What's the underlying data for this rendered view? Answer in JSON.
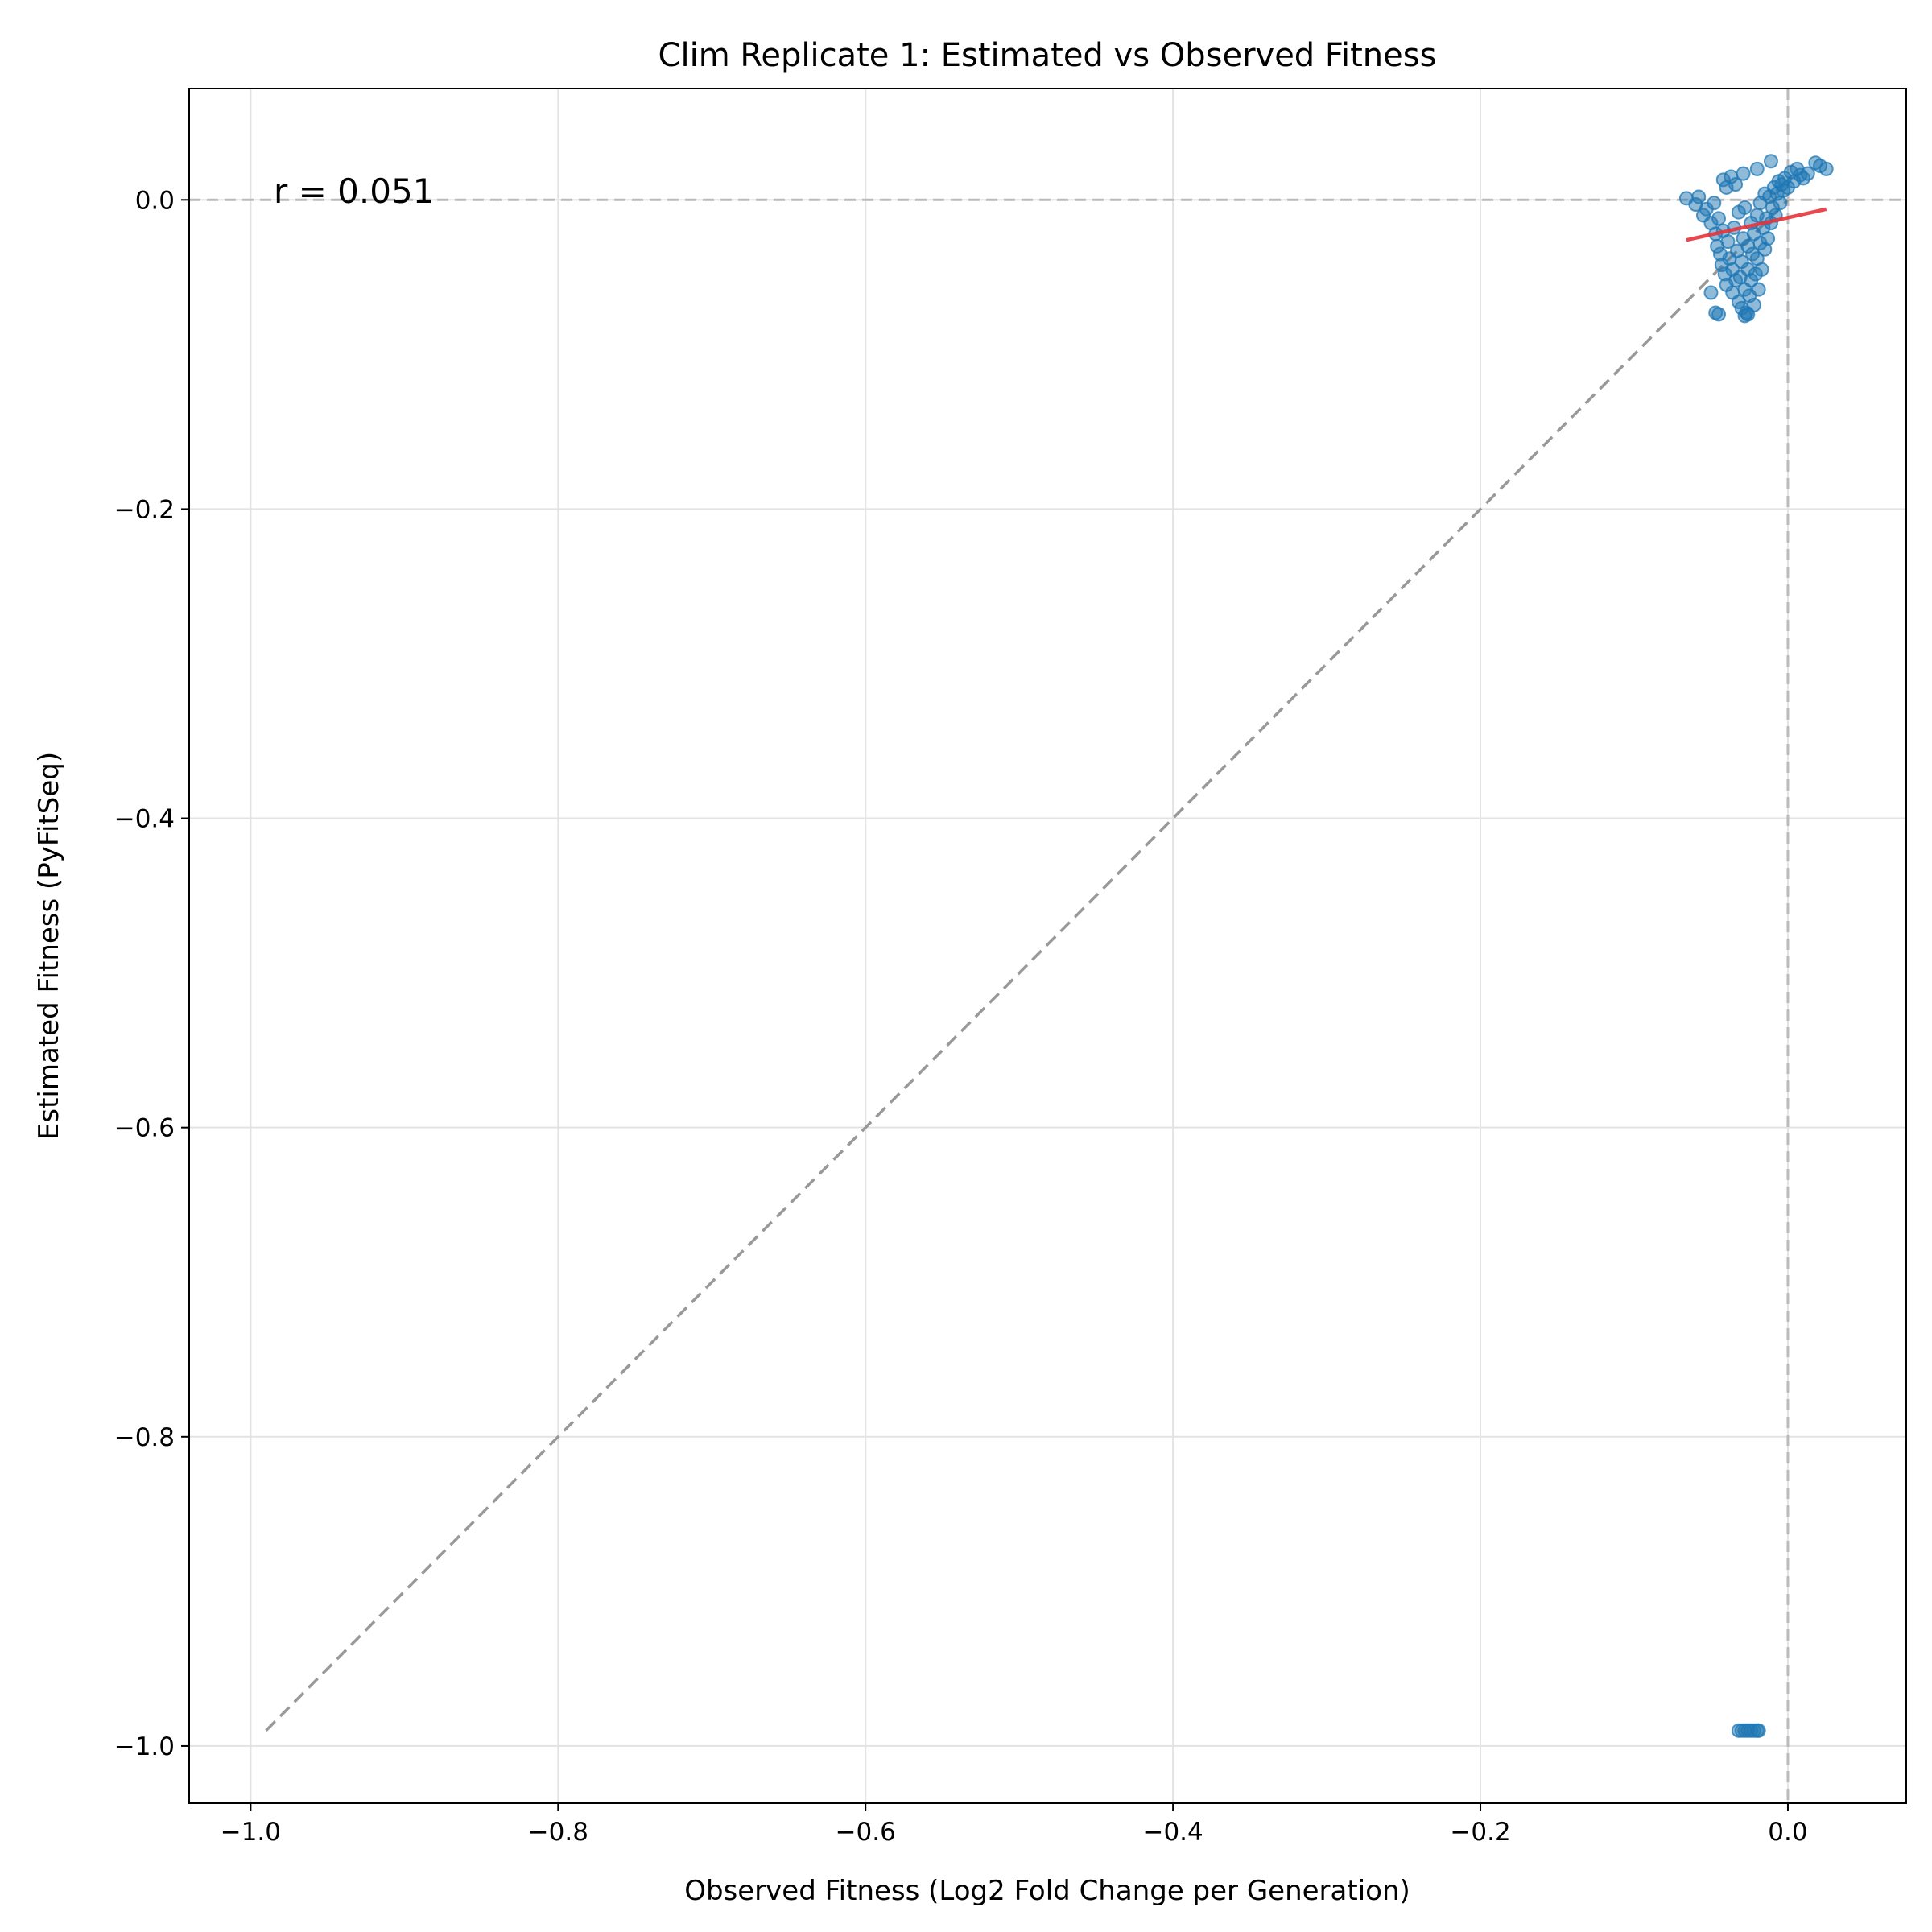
{
  "chart_data": {
    "type": "scatter",
    "title": "Clim Replicate 1: Estimated vs Observed Fitness",
    "xlabel": "Observed Fitness (Log2 Fold Change per Generation)",
    "ylabel": "Estimated Fitness (PyFitSeq)",
    "xlim": [
      -1.04,
      0.077
    ],
    "ylim": [
      -1.037,
      0.072
    ],
    "xticks": [
      -1.0,
      -0.8,
      -0.6,
      -0.4,
      -0.2,
      0.0
    ],
    "xtick_labels": [
      "−1.0",
      "−0.8",
      "−0.6",
      "−0.4",
      "−0.2",
      "0.0"
    ],
    "yticks": [
      0.0,
      -0.2,
      -0.4,
      -0.6,
      -0.8,
      -1.0
    ],
    "ytick_labels": [
      "0.0",
      "−0.2",
      "−0.4",
      "−0.6",
      "−0.8",
      "−1.0"
    ],
    "grid": true,
    "annotation": "r = 0.051",
    "identity_line": {
      "x": [
        -0.99,
        0.0
      ],
      "y": [
        -0.99,
        0.0
      ],
      "color": "#999999",
      "style": "dashed"
    },
    "reference_lines": {
      "x0": 0.0,
      "y0": 0.0,
      "color": "#bbbbbb",
      "style": "dashed"
    },
    "fit_line": {
      "x": [
        -0.066,
        0.025
      ],
      "y": [
        -0.026,
        -0.006
      ],
      "color": "#e8333a"
    },
    "point_color": "#1f77b4",
    "point_alpha": 0.5,
    "points": [
      [
        -0.066,
        0.001
      ],
      [
        -0.06,
        -0.003
      ],
      [
        -0.058,
        0.002
      ],
      [
        -0.055,
        -0.01
      ],
      [
        -0.053,
        -0.006
      ],
      [
        -0.05,
        -0.015
      ],
      [
        -0.048,
        -0.002
      ],
      [
        -0.047,
        -0.022
      ],
      [
        -0.046,
        -0.03
      ],
      [
        -0.045,
        -0.012
      ],
      [
        -0.044,
        -0.035
      ],
      [
        -0.043,
        -0.042
      ],
      [
        -0.042,
        -0.02
      ],
      [
        -0.041,
        -0.048
      ],
      [
        -0.04,
        -0.055
      ],
      [
        -0.04,
        0.008
      ],
      [
        -0.039,
        -0.027
      ],
      [
        -0.038,
        -0.038
      ],
      [
        -0.037,
        0.015
      ],
      [
        -0.036,
        -0.06
      ],
      [
        -0.036,
        -0.045
      ],
      [
        -0.035,
        -0.018
      ],
      [
        -0.034,
        -0.052
      ],
      [
        -0.034,
        0.01
      ],
      [
        -0.033,
        -0.033
      ],
      [
        -0.032,
        -0.066
      ],
      [
        -0.032,
        -0.008
      ],
      [
        -0.031,
        -0.05
      ],
      [
        -0.03,
        -0.07
      ],
      [
        -0.03,
        -0.04
      ],
      [
        -0.029,
        -0.025
      ],
      [
        -0.028,
        -0.058
      ],
      [
        -0.028,
        -0.005
      ],
      [
        -0.027,
        -0.073
      ],
      [
        -0.026,
        -0.045
      ],
      [
        -0.026,
        -0.03
      ],
      [
        -0.025,
        -0.062
      ],
      [
        -0.024,
        -0.015
      ],
      [
        -0.024,
        -0.052
      ],
      [
        -0.023,
        -0.035
      ],
      [
        -0.022,
        -0.068
      ],
      [
        -0.022,
        -0.022
      ],
      [
        -0.021,
        -0.048
      ],
      [
        -0.02,
        -0.038
      ],
      [
        -0.02,
        -0.01
      ],
      [
        -0.019,
        -0.058
      ],
      [
        -0.018,
        -0.028
      ],
      [
        -0.018,
        -0.002
      ],
      [
        -0.017,
        -0.045
      ],
      [
        -0.016,
        -0.018
      ],
      [
        -0.015,
        0.004
      ],
      [
        -0.015,
        -0.032
      ],
      [
        -0.014,
        -0.012
      ],
      [
        -0.013,
        -0.025
      ],
      [
        -0.012,
        0.002
      ],
      [
        -0.011,
        -0.015
      ],
      [
        -0.01,
        -0.005
      ],
      [
        -0.009,
        0.008
      ],
      [
        -0.008,
        -0.01
      ],
      [
        -0.007,
        0.004
      ],
      [
        -0.006,
        0.012
      ],
      [
        -0.005,
        -0.002
      ],
      [
        -0.004,
        0.01
      ],
      [
        -0.003,
        0.006
      ],
      [
        -0.002,
        0.014
      ],
      [
        0.0,
        0.008
      ],
      [
        0.002,
        0.018
      ],
      [
        0.004,
        0.012
      ],
      [
        0.006,
        0.02
      ],
      [
        0.008,
        0.016
      ],
      [
        0.01,
        0.014
      ],
      [
        0.013,
        0.017
      ],
      [
        0.018,
        0.024
      ],
      [
        0.021,
        0.022
      ],
      [
        0.025,
        0.02
      ],
      [
        -0.042,
        0.013
      ],
      [
        -0.029,
        0.017
      ],
      [
        -0.02,
        0.02
      ],
      [
        -0.011,
        0.025
      ],
      [
        -0.05,
        -0.06
      ],
      [
        -0.047,
        -0.073
      ],
      [
        -0.045,
        -0.074
      ],
      [
        -0.028,
        -0.075
      ],
      [
        -0.026,
        -0.074
      ],
      [
        -0.032,
        -0.99
      ],
      [
        -0.03,
        -0.99
      ],
      [
        -0.028,
        -0.99
      ],
      [
        -0.026,
        -0.99
      ],
      [
        -0.024,
        -0.99
      ],
      [
        -0.022,
        -0.99
      ],
      [
        -0.02,
        -0.99
      ],
      [
        -0.019,
        -0.99
      ]
    ]
  }
}
